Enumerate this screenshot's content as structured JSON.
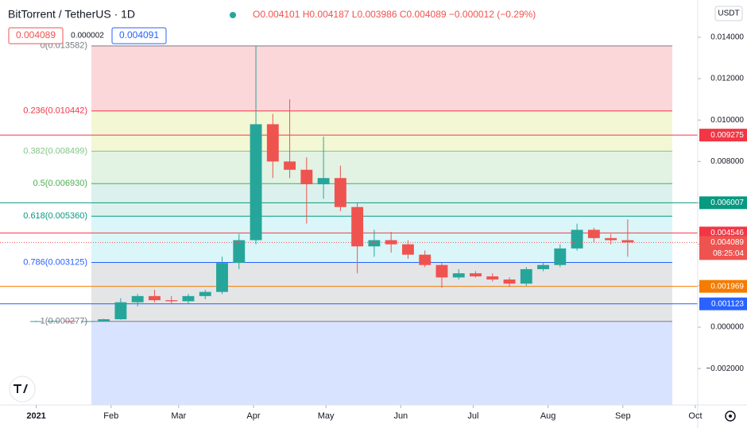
{
  "chart_data": {
    "type": "candlestick",
    "title": "BitTorrent / TetherUS · 1D",
    "ohlc_header": "O0.004101 H0.004187 L0.003986 C0.004089 −0.000012 (−0.29%)",
    "quote_boxes": [
      "0.004089",
      "0.000002",
      "0.004091"
    ],
    "currency": "USDT",
    "last_price": {
      "value": 0.004089,
      "label": "0.004089",
      "timer": "08:25:04"
    },
    "x": [
      0,
      7,
      14,
      21,
      28,
      35,
      42,
      49,
      56,
      63,
      70,
      77,
      84,
      91,
      98,
      105,
      112,
      119,
      126,
      133,
      140,
      147,
      154,
      161,
      168,
      175,
      182,
      189,
      196,
      203,
      210,
      217,
      224,
      231,
      238,
      245
    ],
    "open": [
      0.00028,
      0.00029,
      0.0003,
      0.00027,
      0.00029,
      0.00038,
      0.0012,
      0.0015,
      0.0013,
      0.00125,
      0.0015,
      0.0017,
      0.0031,
      0.0042,
      0.0098,
      0.008,
      0.0076,
      0.0069,
      0.0072,
      0.0058,
      0.0039,
      0.0042,
      0.004,
      0.0035,
      0.003,
      0.0024,
      0.0026,
      0.00245,
      0.0023,
      0.0021,
      0.0028,
      0.003,
      0.0038,
      0.0047,
      0.0043,
      0.0042
    ],
    "high": [
      0.00031,
      0.00032,
      0.00031,
      0.0003,
      0.0004,
      0.0014,
      0.0016,
      0.0018,
      0.0015,
      0.0016,
      0.0018,
      0.0034,
      0.0045,
      0.01358,
      0.0103,
      0.011,
      0.0082,
      0.0092,
      0.0078,
      0.006,
      0.0047,
      0.0046,
      0.0042,
      0.0037,
      0.0031,
      0.0028,
      0.0027,
      0.0026,
      0.0024,
      0.0029,
      0.0031,
      0.004,
      0.005,
      0.0048,
      0.0045,
      0.0052
    ],
    "low": [
      0.00027,
      0.00027,
      0.00026,
      0.00026,
      0.00028,
      0.00036,
      0.001,
      0.0012,
      0.0011,
      0.00115,
      0.00135,
      0.0016,
      0.0028,
      0.004,
      0.0072,
      0.0072,
      0.005,
      0.0062,
      0.0056,
      0.0026,
      0.0034,
      0.0036,
      0.0033,
      0.0029,
      0.0019,
      0.0023,
      0.0024,
      0.0022,
      0.00195,
      0.002,
      0.0027,
      0.0029,
      0.0037,
      0.0041,
      0.004,
      0.0034
    ],
    "close": [
      0.00029,
      0.0003,
      0.00027,
      0.00029,
      0.00038,
      0.0012,
      0.0015,
      0.0013,
      0.00125,
      0.0015,
      0.0017,
      0.0031,
      0.0042,
      0.0098,
      0.008,
      0.0076,
      0.0069,
      0.0072,
      0.0058,
      0.0039,
      0.0042,
      0.004,
      0.0035,
      0.003,
      0.0024,
      0.0026,
      0.00245,
      0.0023,
      0.0021,
      0.0028,
      0.003,
      0.0038,
      0.0047,
      0.0043,
      0.0042,
      0.004089
    ],
    "up_color": "#26a69a",
    "down_color": "#ef5350",
    "xlim": [
      -15,
      274
    ],
    "xticks": [
      {
        "value": 0,
        "label": "2021"
      },
      {
        "value": 31,
        "label": "Feb"
      },
      {
        "value": 59,
        "label": "Mar"
      },
      {
        "value": 90,
        "label": "Apr"
      },
      {
        "value": 120,
        "label": "May"
      },
      {
        "value": 151,
        "label": "Jun"
      },
      {
        "value": 181,
        "label": "Jul"
      },
      {
        "value": 212,
        "label": "Aug"
      },
      {
        "value": 243,
        "label": "Sep"
      },
      {
        "value": 273,
        "label": "Oct"
      }
    ],
    "ylim": [
      -0.00376,
      0.0158
    ],
    "yticks": [
      {
        "value": 0.014,
        "label": "0.014000"
      },
      {
        "value": 0.012,
        "label": "0.012000"
      },
      {
        "value": 0.01,
        "label": "0.010000"
      },
      {
        "value": 0.008,
        "label": "0.008000"
      },
      {
        "value": 0.006,
        "label": "0.006000"
      },
      {
        "value": 0.004,
        "label": "0.004000"
      },
      {
        "value": 0.002,
        "label": "0.002000"
      },
      {
        "value": 0,
        "label": "0.000000"
      },
      {
        "value": -0.002,
        "label": "−0.002000"
      }
    ],
    "fib_levels": [
      {
        "label": "0(0.013582)",
        "price": 0.013582,
        "color": "#787b86",
        "band": "rgba(242,54,69,0.2)"
      },
      {
        "label": "0.236(0.010442)",
        "price": 0.010442,
        "color": "#f23645",
        "band": "rgba(205,220,57,0.22)"
      },
      {
        "label": "0.382(0.008499)",
        "price": 0.008499,
        "color": "#81c784",
        "band": "rgba(76,175,80,0.16)"
      },
      {
        "label": "0.5(0.006930)",
        "price": 0.00693,
        "color": "#4caf50",
        "band": "rgba(8,153,129,0.14)"
      },
      {
        "label": "0.618(0.005360)",
        "price": 0.00536,
        "color": "#089981",
        "band": "rgba(0,188,212,0.14)"
      },
      {
        "label": "0.786(0.003125)",
        "price": 0.003125,
        "color": "#2962ff",
        "band": "rgba(120,123,134,0.2)"
      },
      {
        "label": "1(0.000277)",
        "price": 0.000277,
        "color": "#787b86",
        "band": "rgba(41,98,255,0.18)"
      }
    ],
    "price_lines": [
      {
        "label": "0.009275",
        "price": 0.009275,
        "color": "#f23645"
      },
      {
        "label": "0.006007",
        "price": 0.006007,
        "color": "#089981"
      },
      {
        "label": "0.004546",
        "price": 0.004546,
        "color": "#f23645"
      },
      {
        "label": "0.001969",
        "price": 0.001969,
        "color": "#f57c00"
      },
      {
        "label": "0.001123",
        "price": 0.001123,
        "color": "#2962ff"
      }
    ]
  }
}
